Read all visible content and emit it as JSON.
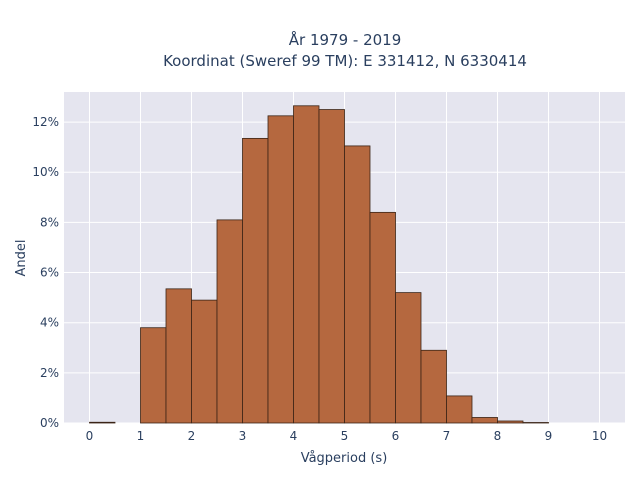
{
  "chart_data": {
    "type": "bar",
    "title_line1": "År 1979 - 2019",
    "title_line2": "Koordinat (Sweref 99 TM): E 331412, N 6330414",
    "xlabel": "Vågperiod (s)",
    "ylabel": "Andel",
    "bin_width": 0.5,
    "x_bin_starts": [
      0,
      0.5,
      1,
      1.5,
      2,
      2.5,
      3,
      3.5,
      4,
      4.5,
      5,
      5.5,
      6,
      6.5,
      7,
      7.5,
      8,
      8.5,
      9,
      9.5
    ],
    "values": [
      0.03,
      0,
      3.8,
      5.35,
      4.9,
      8.1,
      11.35,
      12.25,
      12.65,
      12.5,
      11.05,
      8.4,
      5.2,
      2.9,
      1.08,
      0.22,
      0.08,
      0.02,
      0,
      0
    ],
    "xlim": [
      -0.5,
      10.5
    ],
    "ylim": [
      0,
      13.2
    ],
    "x_ticks": [
      0,
      1,
      2,
      3,
      4,
      5,
      6,
      7,
      8,
      9,
      10
    ],
    "y_ticks": [
      0,
      2,
      4,
      6,
      8,
      10,
      12
    ],
    "y_tick_format": "%",
    "grid": true,
    "legend": "none",
    "colors": {
      "bar_fill": "#b5683f",
      "bar_stroke": "#3b2416",
      "plot_bg": "#e5e5ef",
      "grid": "#ffffff"
    }
  }
}
